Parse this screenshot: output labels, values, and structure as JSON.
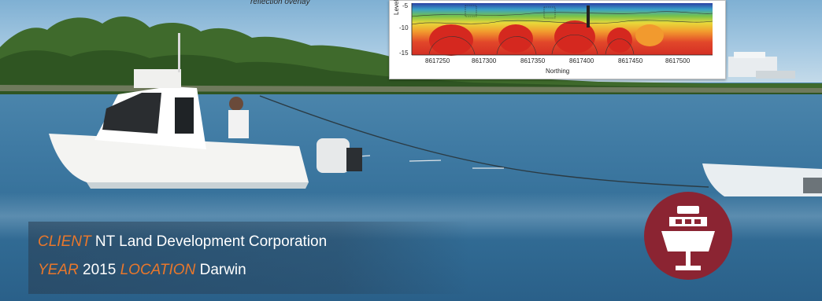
{
  "inset_chart": {
    "overlay_text": "reflection overlay",
    "ylabel": "Level (mAT",
    "xlabel": "Northing",
    "y_ticks": [
      "-5",
      "-10",
      "-15"
    ],
    "x_ticks": [
      "8617250",
      "8617300",
      "8617350",
      "8617400",
      "8617450",
      "8617500"
    ]
  },
  "caption": {
    "client_label": "CLIENT",
    "client_value": "NT Land Development Corporation",
    "year_label": "YEAR",
    "year_value": "2015",
    "location_label": "LOCATION",
    "location_value": "Darwin"
  },
  "badge": {
    "icon": "boat-icon",
    "color": "#8b2432"
  }
}
